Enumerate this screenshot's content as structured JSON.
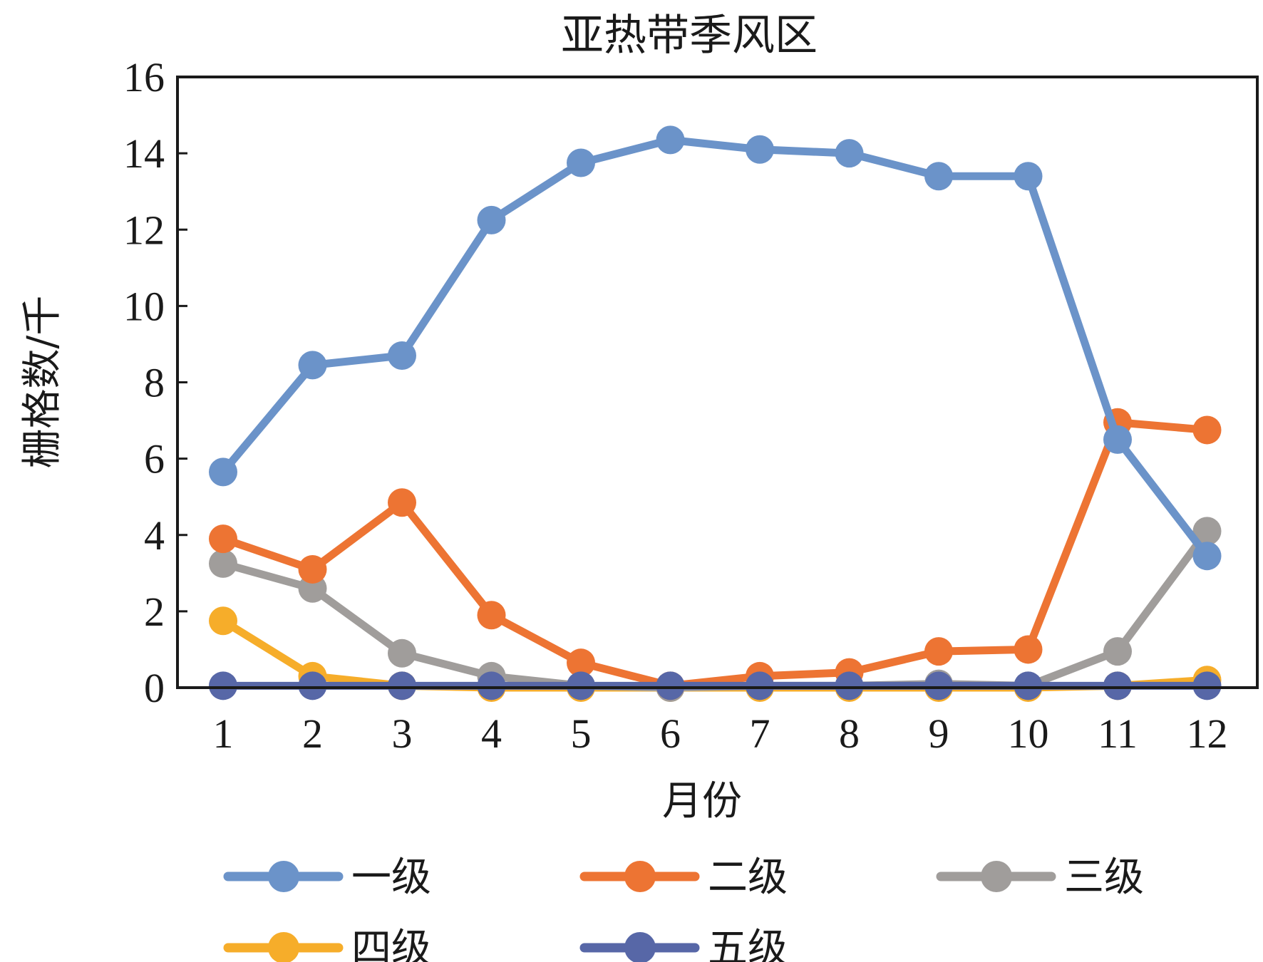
{
  "chart_data": {
    "type": "line",
    "title": "亚热带季风区",
    "xlabel": "月份",
    "ylabel": "栅格数/千",
    "categories": [
      "1",
      "2",
      "3",
      "4",
      "5",
      "6",
      "7",
      "8",
      "9",
      "10",
      "11",
      "12"
    ],
    "ylim": [
      0,
      16
    ],
    "yticks": [
      "0",
      "2",
      "4",
      "6",
      "8",
      "10",
      "12",
      "14",
      "16"
    ],
    "grid": false,
    "legend_position": "bottom",
    "series": [
      {
        "name": "一级",
        "color": "#6b93c9",
        "values": [
          5.65,
          8.45,
          8.7,
          12.25,
          13.75,
          14.35,
          14.1,
          14.0,
          13.4,
          13.4,
          6.5,
          3.45
        ]
      },
      {
        "name": "二级",
        "color": "#ed7433",
        "values": [
          3.9,
          3.1,
          4.85,
          1.9,
          0.65,
          0.05,
          0.3,
          0.4,
          0.95,
          1.0,
          6.95,
          6.75
        ]
      },
      {
        "name": "三级",
        "color": "#a09d9b",
        "values": [
          3.25,
          2.6,
          0.9,
          0.3,
          0.05,
          0.0,
          0.05,
          0.05,
          0.1,
          0.05,
          0.95,
          4.1
        ]
      },
      {
        "name": "四级",
        "color": "#f6ad2a",
        "values": [
          1.75,
          0.3,
          0.05,
          0.0,
          0.0,
          0.0,
          0.0,
          0.0,
          0.0,
          0.0,
          0.05,
          0.2
        ]
      },
      {
        "name": "五级",
        "color": "#5767a7",
        "values": [
          0.05,
          0.05,
          0.05,
          0.05,
          0.05,
          0.05,
          0.05,
          0.05,
          0.05,
          0.05,
          0.05,
          0.05
        ]
      }
    ]
  }
}
